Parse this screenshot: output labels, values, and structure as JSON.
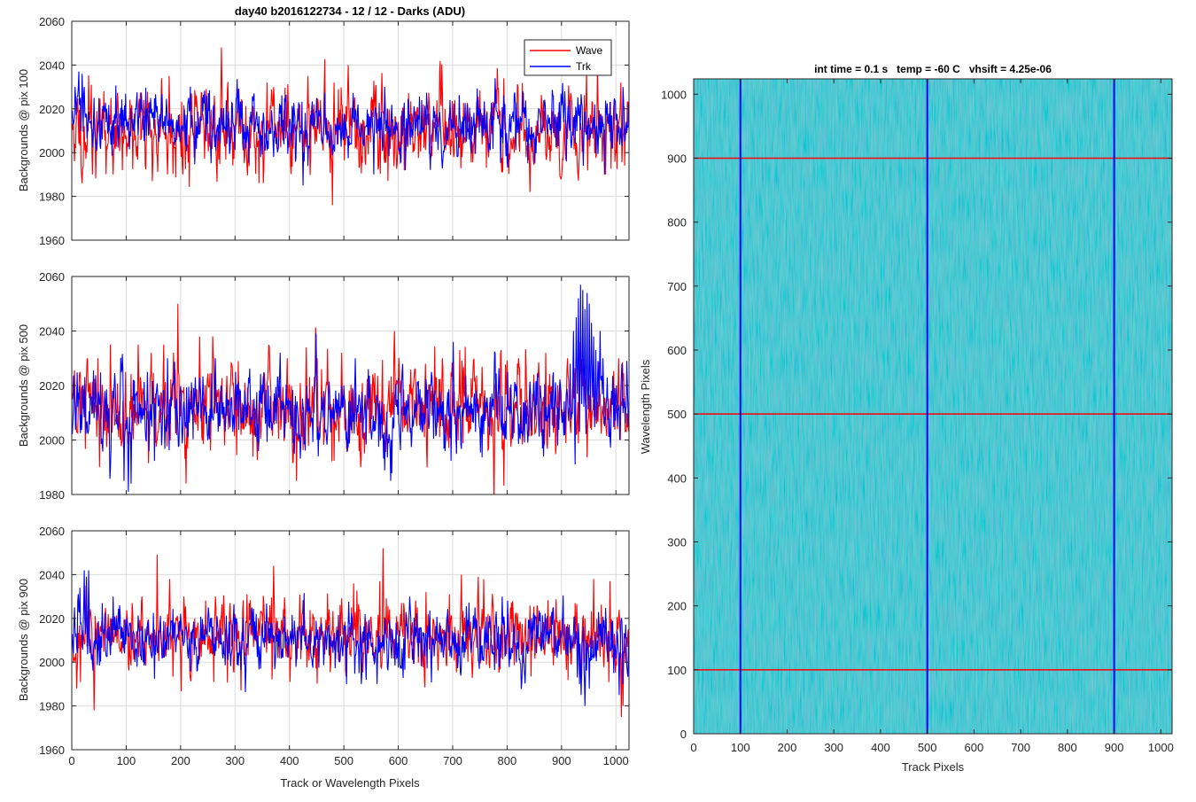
{
  "figure_title": "day40 b2016122734 - 12 / 12 - Darks (ADU)",
  "colors": {
    "wave": "#ff0000",
    "trk": "#0000ff",
    "grid": "#dcdcdc",
    "image_base": "#1fa8b4"
  },
  "chart_data": [
    {
      "type": "line",
      "id": "pix100",
      "title": "day40 b2016122734 - 12 / 12 - Darks (ADU)",
      "xlabel": "",
      "ylabel": "Backgrounds @ pix 100",
      "xlim": [
        0,
        1024
      ],
      "ylim": [
        1960,
        2060
      ],
      "xticks": [
        0,
        100,
        200,
        300,
        400,
        500,
        600,
        700,
        800,
        900,
        1000
      ],
      "yticks": [
        1960,
        1980,
        2000,
        2020,
        2040,
        2060
      ],
      "grid": true,
      "legend": {
        "placement": "top-right",
        "entries": [
          "Wave",
          "Trk"
        ]
      },
      "series": [
        {
          "name": "Wave",
          "mean": 2010,
          "noise": 9,
          "seed": 11,
          "spikes": [
            [
              6,
              2002
            ],
            [
              18,
              1986
            ],
            [
              35,
              2031
            ],
            [
              37,
              1990
            ],
            [
              58,
              2028
            ],
            [
              75,
              1990
            ],
            [
              131,
              2024
            ],
            [
              147,
              1987
            ],
            [
              164,
              2034
            ],
            [
              171,
              2006
            ],
            [
              175,
              1990
            ],
            [
              178,
              2035
            ],
            [
              203,
              1990
            ],
            [
              219,
              2027
            ],
            [
              246,
              2029
            ],
            [
              261,
              2026
            ],
            [
              274,
              2048
            ],
            [
              351,
              1986
            ],
            [
              358,
              2032
            ],
            [
              370,
              2030
            ],
            [
              433,
              2035
            ],
            [
              478,
              1976
            ],
            [
              481,
              2032
            ],
            [
              489,
              2029
            ],
            [
              507,
              2040
            ],
            [
              516,
              2026
            ],
            [
              527,
              1993
            ],
            [
              608,
              2020
            ],
            [
              626,
              2000
            ],
            [
              683,
              2003
            ],
            [
              793,
              2034
            ],
            [
              841,
              1982
            ],
            [
              945,
              2038
            ],
            [
              965,
              2040
            ],
            [
              980,
              1990
            ],
            [
              1008,
              2032
            ]
          ]
        },
        {
          "name": "Trk",
          "mean": 2012,
          "noise": 7,
          "seed": 29,
          "spikes": [
            [
              5,
              2030
            ],
            [
              8,
              2022
            ],
            [
              12,
              2037
            ],
            [
              18,
              2036
            ],
            [
              22,
              2030
            ],
            [
              40,
              2025
            ],
            [
              60,
              2020
            ],
            [
              370,
              1998
            ],
            [
              424,
              1985
            ],
            [
              520,
              2020
            ],
            [
              554,
              1990
            ],
            [
              612,
              1992
            ],
            [
              777,
              2034
            ],
            [
              828,
              2028
            ],
            [
              850,
              1995
            ],
            [
              905,
              2028
            ],
            [
              939,
              1994
            ],
            [
              960,
              2022
            ],
            [
              978,
              1990
            ],
            [
              997,
              2024
            ],
            [
              1012,
              2030
            ]
          ]
        }
      ]
    },
    {
      "type": "line",
      "id": "pix500",
      "xlabel": "",
      "ylabel": "Backgrounds @ pix 500",
      "xlim": [
        0,
        1024
      ],
      "ylim": [
        1980,
        2060
      ],
      "xticks": [
        0,
        100,
        200,
        300,
        400,
        500,
        600,
        700,
        800,
        900,
        1000
      ],
      "yticks": [
        1980,
        2000,
        2020,
        2040,
        2060
      ],
      "grid": true,
      "series": [
        {
          "name": "Wave",
          "mean": 2011,
          "noise": 8,
          "seed": 43,
          "spikes": [
            [
              14,
              2025
            ],
            [
              28,
              2030
            ],
            [
              47,
              2030
            ],
            [
              50,
              1990
            ],
            [
              70,
              2035
            ],
            [
              98,
              2025
            ],
            [
              121,
              2035
            ],
            [
              145,
              2032
            ],
            [
              168,
              2035
            ],
            [
              186,
              2032
            ],
            [
              194,
              2050
            ],
            [
              209,
              1984
            ],
            [
              234,
              2038
            ],
            [
              258,
              2038
            ],
            [
              300,
              2020
            ],
            [
              395,
              2030
            ],
            [
              412,
              2035
            ],
            [
              412,
              1985
            ],
            [
              430,
              2034
            ],
            [
              450,
              2030
            ],
            [
              495,
              2032
            ],
            [
              530,
              1990
            ],
            [
              592,
              2040
            ],
            [
              649,
              2028
            ],
            [
              680,
              2030
            ],
            [
              712,
              2033
            ],
            [
              740,
              2023
            ],
            [
              788,
              2033
            ],
            [
              820,
              2030
            ],
            [
              848,
              2024
            ],
            [
              870,
              2032
            ],
            [
              910,
              2030
            ],
            [
              933,
              2036
            ],
            [
              1004,
              2030
            ]
          ]
        },
        {
          "name": "Trk",
          "mean": 2010,
          "noise": 7,
          "seed": 57,
          "spikes": [
            [
              60,
              2018
            ],
            [
              95,
              1985
            ],
            [
              103,
              1981
            ],
            [
              108,
              1984
            ],
            [
              138,
              2025
            ],
            [
              175,
              2030
            ],
            [
              263,
              2030
            ],
            [
              300,
              2025
            ],
            [
              360,
              2020
            ],
            [
              448,
              2039
            ],
            [
              520,
              2030
            ],
            [
              585,
              1985
            ],
            [
              635,
              2020
            ],
            [
              660,
              2025
            ],
            [
              700,
              2036
            ],
            [
              800,
              2025
            ],
            [
              860,
              2020
            ],
            [
              880,
              2018
            ],
            [
              896,
              2022
            ],
            [
              915,
              2028
            ],
            [
              921,
              2040
            ],
            [
              926,
              2045
            ],
            [
              930,
              2052
            ],
            [
              934,
              2057
            ],
            [
              938,
              2055
            ],
            [
              942,
              2048
            ],
            [
              946,
              2054
            ],
            [
              950,
              2050
            ],
            [
              954,
              2043
            ],
            [
              958,
              2038
            ],
            [
              962,
              2033
            ],
            [
              966,
              2029
            ],
            [
              970,
              2040
            ],
            [
              975,
              2030
            ],
            [
              1000,
              2020
            ],
            [
              1010,
              2028
            ]
          ]
        }
      ]
    },
    {
      "type": "line",
      "id": "pix900",
      "xlabel": "Track or Wavelength Pixels",
      "ylabel": "Backgrounds @ pix 900",
      "xlim": [
        0,
        1024
      ],
      "ylim": [
        1960,
        2060
      ],
      "xticks": [
        0,
        100,
        200,
        300,
        400,
        500,
        600,
        700,
        800,
        900,
        1000
      ],
      "yticks": [
        1960,
        1980,
        2000,
        2020,
        2040,
        2060
      ],
      "grid": true,
      "series": [
        {
          "name": "Wave",
          "mean": 2011,
          "noise": 8,
          "seed": 71,
          "spikes": [
            [
              8,
              1988
            ],
            [
              25,
              2035
            ],
            [
              40,
              1978
            ],
            [
              70,
              2020
            ],
            [
              110,
              2027
            ],
            [
              128,
              2030
            ],
            [
              156,
              2049
            ],
            [
              179,
              2038
            ],
            [
              205,
              2030
            ],
            [
              263,
              2030
            ],
            [
              290,
              2027
            ],
            [
              321,
              2031
            ],
            [
              363,
              2026
            ],
            [
              370,
              2044
            ],
            [
              422,
              2022
            ],
            [
              517,
              2036
            ],
            [
              540,
              2010
            ],
            [
              565,
              2037
            ],
            [
              571,
              2052
            ],
            [
              605,
              2027
            ],
            [
              650,
              2032
            ],
            [
              715,
              2040
            ],
            [
              746,
              2039
            ],
            [
              766,
              1999
            ],
            [
              900,
              2020
            ],
            [
              958,
              2038
            ],
            [
              988,
              2037
            ],
            [
              1009,
              1975
            ],
            [
              1012,
              1980
            ]
          ]
        },
        {
          "name": "Trk",
          "mean": 2010,
          "noise": 7,
          "seed": 83,
          "spikes": [
            [
              4,
              2025
            ],
            [
              14,
              2034
            ],
            [
              22,
              2042
            ],
            [
              26,
              2039
            ],
            [
              30,
              2042
            ],
            [
              55,
              2027
            ],
            [
              75,
              2030
            ],
            [
              100,
              2020
            ],
            [
              250,
              2025
            ],
            [
              330,
              2025
            ],
            [
              459,
              2012
            ],
            [
              491,
              2000
            ],
            [
              527,
              1995
            ],
            [
              531,
              1990
            ],
            [
              540,
              1992
            ],
            [
              560,
              1990
            ],
            [
              575,
              2020
            ],
            [
              620,
              2030
            ],
            [
              642,
              1998
            ],
            [
              740,
              2025
            ],
            [
              778,
              2020
            ],
            [
              790,
              2030
            ],
            [
              800,
              2028
            ],
            [
              845,
              2016
            ],
            [
              928,
              1993
            ],
            [
              932,
              1990
            ],
            [
              935,
              1985
            ],
            [
              942,
              1980
            ],
            [
              950,
              1988
            ],
            [
              958,
              2002
            ],
            [
              978,
              2008
            ],
            [
              995,
              1995
            ],
            [
              1005,
              1985
            ],
            [
              1012,
              1990
            ],
            [
              1020,
              1995
            ]
          ]
        }
      ]
    },
    {
      "type": "heatmap",
      "id": "dark-frame",
      "title": "int time = 0.1 s   temp = -60 C   vhsift = 4.25e-06",
      "xlabel": "Track Pixels",
      "ylabel": "Wavelength Pixels",
      "xlim": [
        0,
        1024
      ],
      "ylim": [
        0,
        1024
      ],
      "xticks": [
        0,
        100,
        200,
        300,
        400,
        500,
        600,
        700,
        800,
        900,
        1000
      ],
      "yticks": [
        0,
        100,
        200,
        300,
        400,
        500,
        600,
        700,
        800,
        900,
        1000
      ],
      "rows": 1024,
      "cols": 1024,
      "value_range": [
        1980,
        2050
      ],
      "vertical_marker_lines": {
        "x": [
          100,
          500,
          900
        ],
        "color": "#0000ff"
      },
      "horizontal_marker_lines": {
        "y": [
          100,
          500,
          900
        ],
        "color": "#ff0000"
      }
    }
  ]
}
